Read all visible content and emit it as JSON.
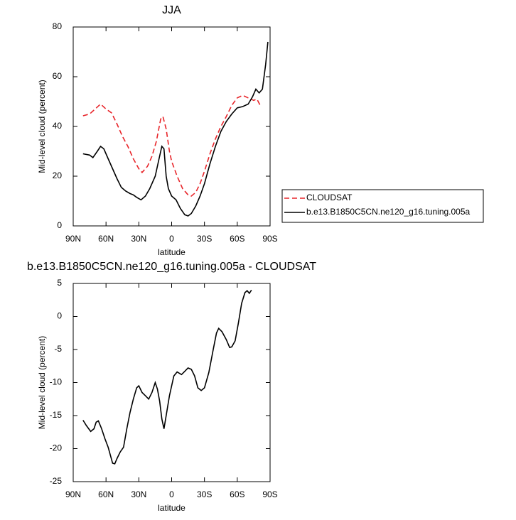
{
  "chart_data": [
    {
      "type": "line",
      "title": "JJA",
      "xlabel": "latitude",
      "ylabel": "Mid-level cloud (percent)",
      "xlim": [
        90,
        -90
      ],
      "ylim": [
        0,
        80
      ],
      "xticks": [
        {
          "value": 90,
          "label": "90N"
        },
        {
          "value": 60,
          "label": "60N"
        },
        {
          "value": 30,
          "label": "30N"
        },
        0,
        {
          "value": -30,
          "label": "30S"
        },
        {
          "value": -60,
          "label": "60S"
        },
        {
          "value": -90,
          "label": "90S"
        }
      ],
      "yticks": [
        0,
        20,
        40,
        60,
        80
      ],
      "legend": "lower right",
      "series": [
        {
          "name": "CLOUDSAT",
          "color": "#e8252a",
          "line_style": "dashed",
          "x": [
            81,
            75,
            70,
            65,
            60,
            55,
            50,
            45,
            40,
            35,
            30,
            27,
            22,
            18,
            14,
            10,
            8,
            5,
            2,
            0,
            -5,
            -10,
            -15,
            -18,
            -22,
            -26,
            -30,
            -35,
            -40,
            -45,
            -50,
            -55,
            -60,
            -65,
            -70,
            -75,
            -78,
            -81
          ],
          "values": [
            44.3,
            45,
            47,
            49,
            47,
            45.5,
            41,
            36,
            32,
            27,
            23,
            21.5,
            24,
            28,
            34,
            43,
            44,
            39,
            30,
            26,
            20,
            15,
            12.5,
            12,
            13.5,
            17,
            22,
            29,
            35,
            40,
            44,
            48.5,
            51.5,
            52.5,
            51.5,
            50.5,
            51,
            48.5
          ]
        },
        {
          "name": "b.e13.B1850C5CN.ne120_g16.tuning.005a",
          "color": "#000000",
          "line_style": "solid",
          "x": [
            81,
            75,
            72,
            68,
            65,
            62,
            58,
            54,
            50,
            46,
            42,
            38,
            35,
            32,
            28,
            24,
            20,
            15,
            12,
            9,
            7,
            5,
            3,
            0,
            -4,
            -8,
            -12,
            -15,
            -18,
            -22,
            -26,
            -30,
            -35,
            -40,
            -45,
            -50,
            -55,
            -60,
            -65,
            -70,
            -74,
            -77,
            -80,
            -83,
            -86,
            -88
          ],
          "values": [
            29,
            28.5,
            27.5,
            30,
            32,
            31,
            27,
            23,
            19,
            15.5,
            14,
            13,
            12.5,
            11.5,
            10.5,
            12,
            15,
            20,
            26,
            32,
            31,
            20,
            15,
            12,
            10.5,
            7,
            4.5,
            4,
            5,
            8,
            12,
            17,
            25,
            32,
            38,
            42,
            45,
            47.5,
            48,
            49,
            52,
            55,
            53.5,
            55,
            65,
            74
          ]
        }
      ]
    },
    {
      "type": "line",
      "title": "b.e13.B1850C5CN.ne120_g16.tuning.005a - CLOUDSAT",
      "xlabel": "latitude",
      "ylabel": "Mid-level cloud (percent)",
      "xlim": [
        90,
        -90
      ],
      "ylim": [
        -25,
        5
      ],
      "xticks": [
        {
          "value": 90,
          "label": "90N"
        },
        {
          "value": 60,
          "label": "60N"
        },
        {
          "value": 30,
          "label": "30N"
        },
        0,
        {
          "value": -30,
          "label": "30S"
        },
        {
          "value": -60,
          "label": "60S"
        },
        {
          "value": -90,
          "label": "90S"
        }
      ],
      "yticks": [
        -25,
        -20,
        -15,
        -10,
        -5,
        0,
        5
      ],
      "series": [
        {
          "color": "#000000",
          "line_style": "solid",
          "x": [
            81,
            78,
            74,
            71,
            69,
            67,
            64,
            61,
            58,
            56,
            54,
            52,
            50,
            47,
            44,
            41,
            38,
            35,
            32,
            30,
            27,
            24,
            21,
            18,
            15,
            13,
            11,
            9,
            7,
            5,
            2,
            -2,
            -5,
            -9,
            -12,
            -15,
            -18,
            -21,
            -24,
            -27,
            -30,
            -34,
            -38,
            -41,
            -43,
            -46,
            -50,
            -53,
            -55,
            -58,
            -61,
            -64,
            -67,
            -69,
            -71,
            -73
          ],
          "values": [
            -15.7,
            -16.5,
            -17.4,
            -17,
            -16,
            -15.8,
            -17,
            -18.5,
            -19.8,
            -21,
            -22.2,
            -22.3,
            -21.5,
            -20.5,
            -19.8,
            -17,
            -14.5,
            -12.5,
            -10.8,
            -10.5,
            -11.5,
            -12,
            -12.5,
            -11.5,
            -10,
            -11,
            -12.8,
            -15.5,
            -17,
            -15,
            -12,
            -9,
            -8.4,
            -8.8,
            -8.3,
            -7.8,
            -8,
            -9,
            -10.8,
            -11.2,
            -10.8,
            -8.5,
            -5,
            -2.5,
            -1.8,
            -2.3,
            -3.5,
            -4.7,
            -4.6,
            -3.7,
            -1,
            2,
            3.6,
            3.9,
            3.5,
            4
          ]
        }
      ]
    }
  ]
}
